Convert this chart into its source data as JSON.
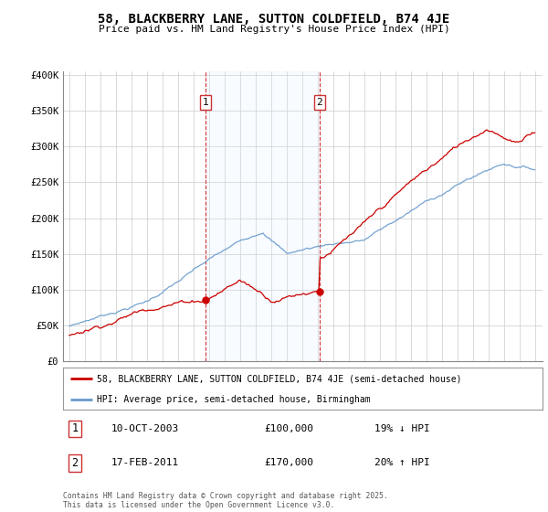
{
  "title": "58, BLACKBERRY LANE, SUTTON COLDFIELD, B74 4JE",
  "subtitle": "Price paid vs. HM Land Registry's House Price Index (HPI)",
  "ylim": [
    0,
    400000
  ],
  "sale1_year": 2003.78,
  "sale1_price": 100000,
  "sale2_year": 2011.12,
  "sale2_price": 170000,
  "sale1_date": "10-OCT-2003",
  "sale1_amount": "£100,000",
  "sale1_hpi": "19% ↓ HPI",
  "sale2_date": "17-FEB-2011",
  "sale2_amount": "£170,000",
  "sale2_hpi": "20% ↑ HPI",
  "legend_property": "58, BLACKBERRY LANE, SUTTON COLDFIELD, B74 4JE (semi-detached house)",
  "legend_hpi": "HPI: Average price, semi-detached house, Birmingham",
  "footnote": "Contains HM Land Registry data © Crown copyright and database right 2025.\nThis data is licensed under the Open Government Licence v3.0.",
  "property_color": "#cc0000",
  "hpi_color": "#6699cc",
  "shade_color": "#ddeeff",
  "grid_color": "#cccccc",
  "chart_bg": "#ffffff"
}
